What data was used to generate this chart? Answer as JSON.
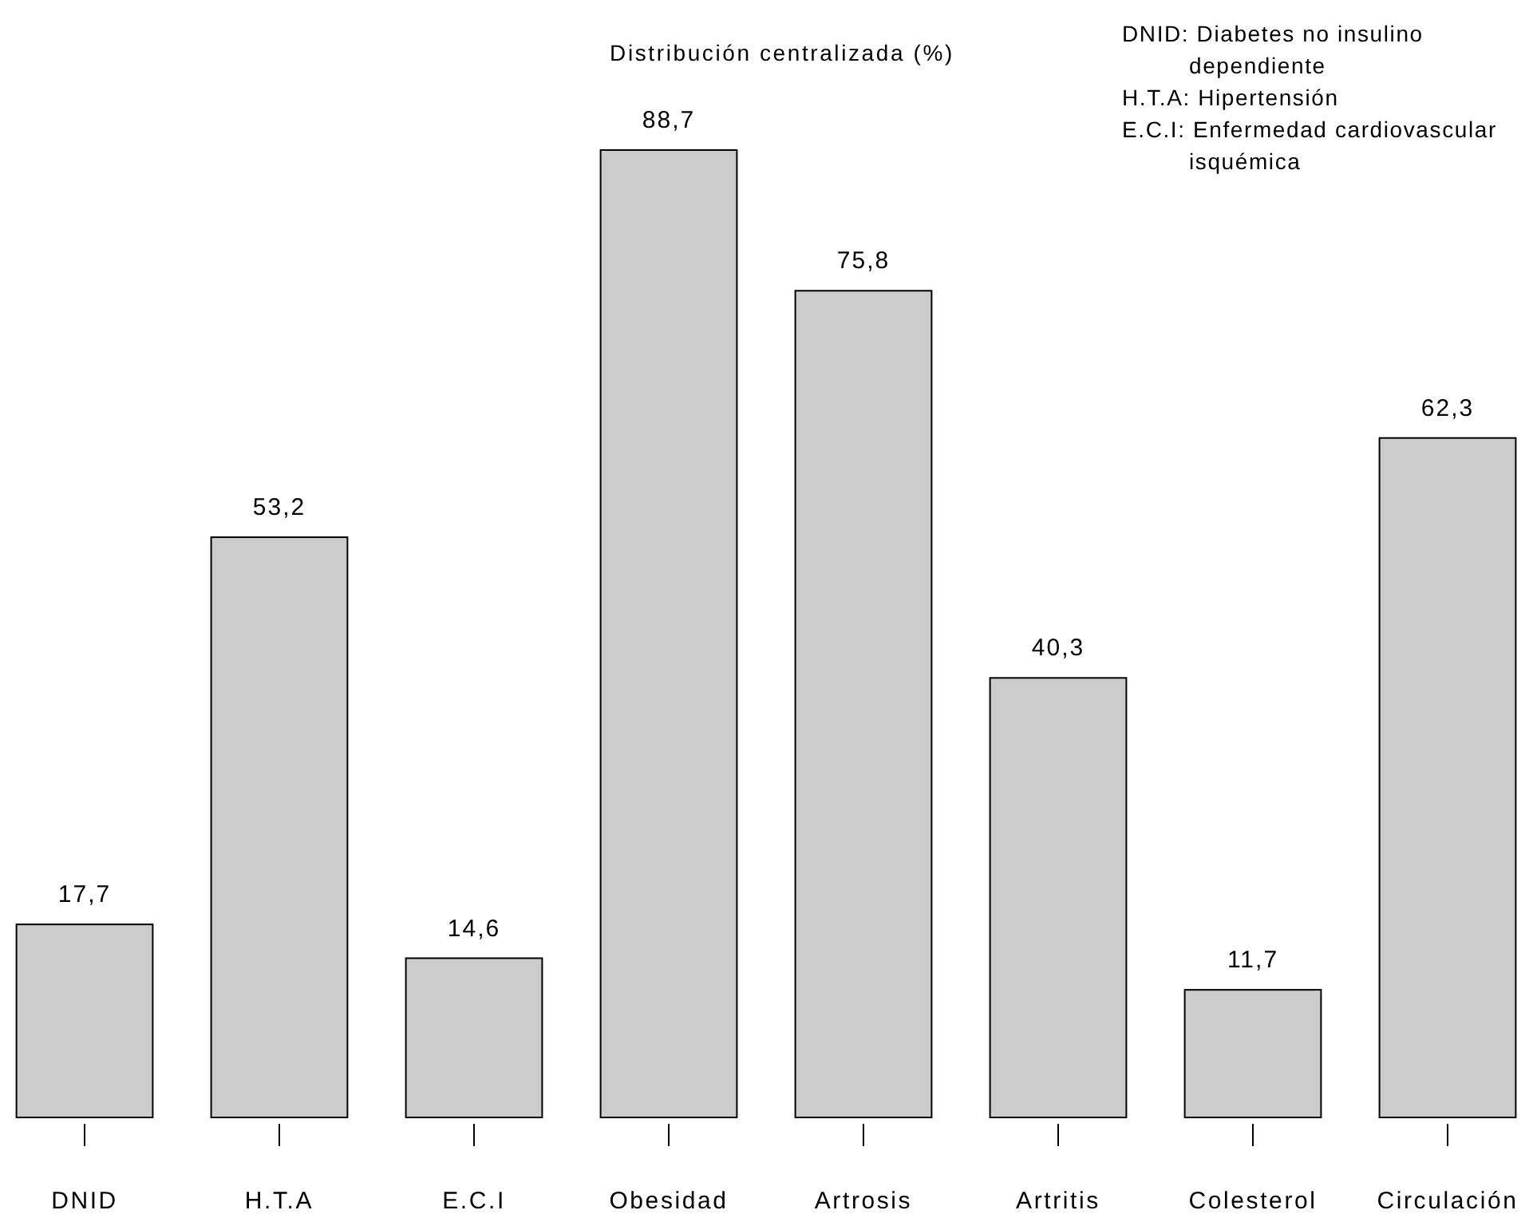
{
  "chart_data": {
    "type": "bar",
    "title": "Distribución centralizada (%)",
    "categories": [
      "DNID",
      "H.T.A",
      "E.C.I",
      "Obesidad",
      "Artrosis",
      "Artritis",
      "Colesterol",
      "Circulación"
    ],
    "values": [
      17.7,
      53.2,
      14.6,
      88.7,
      75.8,
      40.3,
      11.7,
      62.3
    ],
    "value_labels": [
      "17,7",
      "53,2",
      "14,6",
      "88,7",
      "75,8",
      "40,3",
      "11,7",
      "62,3"
    ],
    "color": "#cccccc",
    "data_labels": true,
    "annotations": [
      "DNID: Diabetes no insulino dependiente",
      "H.T.A: Hipertensión",
      "E.C.I: Enfermedad cardiovascular isquémica"
    ]
  }
}
